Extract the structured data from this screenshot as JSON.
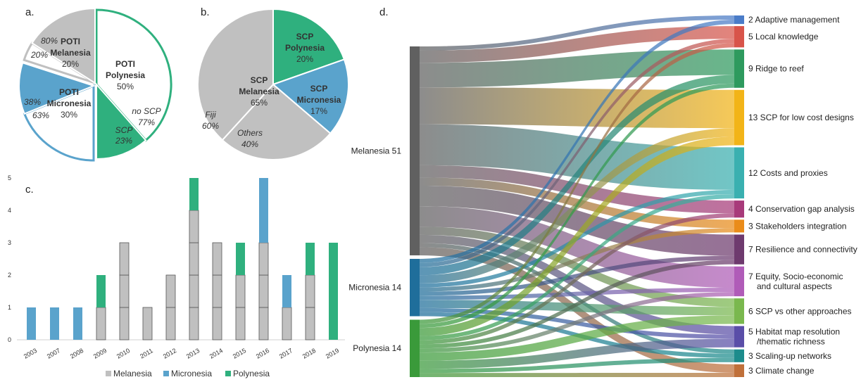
{
  "colors": {
    "melanesia": "#c0c0c0",
    "micronesia": "#5aa3cc",
    "polynesia": "#2fb07e",
    "melanesia_dark": "#606060",
    "micronesia_dark": "#1f6e9b",
    "polynesia_dark": "#3a9a3a"
  },
  "chart_data": [
    {
      "id": "a",
      "panel_label": "a.",
      "type": "pie",
      "slices": [
        {
          "name": "POTI Polynesia",
          "label_lines": [
            "POTI",
            "Polynesia",
            "50%"
          ],
          "value": 50,
          "sub": [
            {
              "name": "no SCP",
              "pct": "77%",
              "value": 77
            },
            {
              "name": "SCP",
              "pct": "23%",
              "value": 23
            }
          ]
        },
        {
          "name": "POTI Micronesia",
          "label_lines": [
            "POTI",
            "Micronesia",
            "30%"
          ],
          "value": 30,
          "sub": [
            {
              "name": "",
              "pct": "38%",
              "value": 38
            },
            {
              "name": "",
              "pct": "63%",
              "value": 63
            }
          ]
        },
        {
          "name": "POTI Melanesia",
          "label_lines": [
            "POTI",
            "Melanesia",
            "20%"
          ],
          "value": 20,
          "sub": [
            {
              "name": "",
              "pct": "80%",
              "value": 80
            },
            {
              "name": "",
              "pct": "20%",
              "value": 20
            }
          ]
        }
      ]
    },
    {
      "id": "b",
      "panel_label": "b.",
      "type": "pie",
      "slices": [
        {
          "name": "SCP Polynesia",
          "label_lines": [
            "SCP",
            "Polynesia",
            "20%"
          ],
          "value": 20
        },
        {
          "name": "SCP Micronesia",
          "label_lines": [
            "SCP",
            "Micronesia",
            "17%"
          ],
          "value": 17
        },
        {
          "name": "SCP Melanesia",
          "label_lines": [
            "SCP",
            "Melanesia",
            "65%"
          ],
          "value": 65,
          "sub": [
            {
              "name": "Others",
              "pct": "40%",
              "value": 40
            },
            {
              "name": "Fiji",
              "pct": "60%",
              "value": 60
            }
          ]
        }
      ]
    },
    {
      "id": "c",
      "panel_label": "c.",
      "type": "bar",
      "stacked": true,
      "categories": [
        "2003",
        "2007",
        "2008",
        "2009",
        "2010",
        "2011",
        "2012",
        "2013",
        "2014",
        "2015",
        "2016",
        "2017",
        "2018",
        "2019"
      ],
      "series": [
        {
          "name": "Melanesia",
          "values": [
            0,
            0,
            0,
            1,
            3,
            1,
            2,
            4,
            3,
            2,
            3,
            1,
            2,
            0
          ]
        },
        {
          "name": "Micronesia",
          "values": [
            1,
            1,
            1,
            0,
            0,
            0,
            0,
            0,
            0,
            0,
            2,
            1,
            0,
            0
          ]
        },
        {
          "name": "Polynesia",
          "values": [
            0,
            0,
            0,
            1,
            0,
            0,
            0,
            1,
            0,
            1,
            0,
            0,
            1,
            3
          ]
        }
      ],
      "ylim": [
        0,
        5
      ],
      "yticks": [
        "0",
        "1",
        "2",
        "3",
        "4",
        "5"
      ],
      "legend": "bottom"
    },
    {
      "id": "d",
      "panel_label": "d.",
      "type": "sankey",
      "sources": [
        {
          "name": "Melanesia 51",
          "label": "Melanesia 51",
          "value": 51
        },
        {
          "name": "Micronesia 14",
          "label": "Micronesia 14",
          "value": 14
        },
        {
          "name": "Polynesia 14",
          "label": "Polynesia 14",
          "value": 14
        }
      ],
      "targets": [
        {
          "label": "2 Adaptive management",
          "value": 2,
          "color": "#4a7cc8"
        },
        {
          "label": "5 Local knowledge",
          "value": 5,
          "color": "#d8544a"
        },
        {
          "label": "9 Ridge to reef",
          "value": 9,
          "color": "#2e9a5e"
        },
        {
          "label": "13 SCP for low cost designs",
          "value": 13,
          "color": "#f2b418"
        },
        {
          "label": "12 Costs and proxies",
          "value": 12,
          "color": "#3ab0b0"
        },
        {
          "label": "4 Conservation gap analysis",
          "value": 4,
          "color": "#a83a7a"
        },
        {
          "label": "3 Stakeholders integration",
          "value": 3,
          "color": "#ea8c1a"
        },
        {
          "label": "7 Resilience and connectivity",
          "value": 7,
          "color": "#6e3a6e"
        },
        {
          "label": "7 Equity, Socio-economic and cultural aspects",
          "lines": [
            "7 Equity, Socio-economic",
            "and cultural aspects"
          ],
          "value": 7,
          "color": "#b05cb8"
        },
        {
          "label": "6 SCP vs other approaches",
          "value": 6,
          "color": "#7ab84e"
        },
        {
          "label": "5 Habitat map resolution /thematic richness",
          "lines": [
            "5 Habitat map resolution",
            "/thematic richness"
          ],
          "value": 5,
          "color": "#5a4ea8"
        },
        {
          "label": "3 Scaling-up networks",
          "value": 3,
          "color": "#1c8c8c"
        },
        {
          "label": "3 Climate change",
          "value": 3,
          "color": "#c0703a"
        }
      ],
      "flows": [
        [
          1,
          3,
          6,
          9,
          10,
          3,
          2,
          5,
          5,
          2,
          2,
          1,
          2
        ],
        [
          1,
          1,
          2,
          2,
          1,
          0,
          1,
          1,
          1,
          2,
          1,
          1,
          0
        ],
        [
          0,
          1,
          1,
          2,
          1,
          1,
          0,
          1,
          1,
          2,
          2,
          1,
          1
        ]
      ]
    }
  ]
}
